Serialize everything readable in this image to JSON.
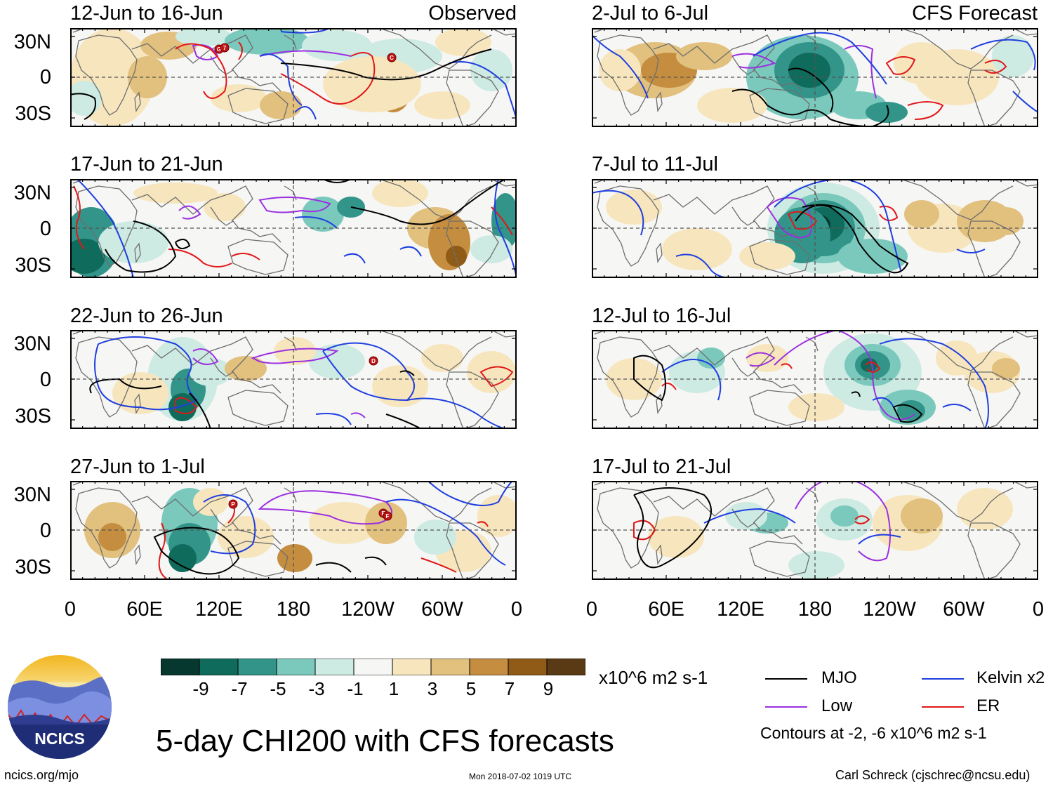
{
  "colors": {
    "levels": [
      "#07382f",
      "#0f6b5c",
      "#33958a",
      "#7ac9bc",
      "#cdeae3",
      "#f6f6f5",
      "#f7e6bd",
      "#e2c07e",
      "#c48d3f",
      "#8f5b17",
      "#5a3a14"
    ],
    "mjo": "#000000",
    "kelvin": "#1f3fe0",
    "low": "#9b30e0",
    "er": "#e01818",
    "coast": "#6e6e6e"
  },
  "panels": [
    {
      "id": "p1",
      "title": "12-Jun to 16-Jun",
      "tag": "Observed"
    },
    {
      "id": "p2",
      "title": "17-Jun to 21-Jun",
      "tag": ""
    },
    {
      "id": "p3",
      "title": "22-Jun to 26-Jun",
      "tag": ""
    },
    {
      "id": "p4",
      "title": "27-Jun to 1-Jul",
      "tag": ""
    },
    {
      "id": "p5",
      "title": "2-Jul to 6-Jul",
      "tag": "CFS Forecast"
    },
    {
      "id": "p6",
      "title": "7-Jul to 11-Jul",
      "tag": ""
    },
    {
      "id": "p7",
      "title": "12-Jul to 16-Jul",
      "tag": ""
    },
    {
      "id": "p8",
      "title": "17-Jul to 21-Jul",
      "tag": ""
    }
  ],
  "y_ticks": [
    "30N",
    "0",
    "30S"
  ],
  "x_ticks": [
    "0",
    "60E",
    "120E",
    "180",
    "120W",
    "60W",
    "0"
  ],
  "storm_markers": {
    "p1": [
      "G",
      "7",
      "C"
    ],
    "p3": [
      "D"
    ],
    "p4": [
      "P",
      "E",
      "F"
    ]
  },
  "colorbar": {
    "labels": [
      "-9",
      "-7",
      "-5",
      "-3",
      "-1",
      "1",
      "3",
      "5",
      "7",
      "9"
    ],
    "units": "x10^6 m2 s-1"
  },
  "legend": {
    "mjo": "MJO",
    "kelvin": "Kelvin x2",
    "low": "Low",
    "er": "ER",
    "contours": "Contours at -2, -6 x10^6 m2 s-1"
  },
  "logo": {
    "text": "NCICS"
  },
  "main_title": "5-day CHI200 with CFS forecasts",
  "footer": {
    "url": "ncics.org/mjo",
    "timestamp": "Mon 2018-07-02 1019 UTC",
    "credit": "Carl Schreck (cjschrec@ncsu.edu)"
  }
}
